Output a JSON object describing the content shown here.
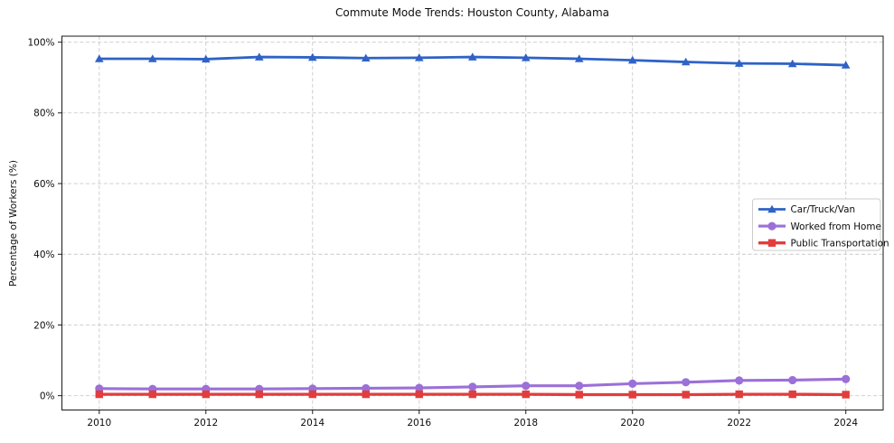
{
  "figure": {
    "title": "Commute Mode Trends: Houston County, Alabama",
    "y_axis_label": "Percentage of Workers (%)"
  },
  "chart_data": {
    "type": "line",
    "title": "Commute Mode Trends: Houston County, Alabama",
    "xlabel": "",
    "ylabel": "Percentage of Workers (%)",
    "x": [
      2010,
      2011,
      2012,
      2013,
      2014,
      2015,
      2016,
      2017,
      2018,
      2019,
      2020,
      2021,
      2022,
      2023,
      2024
    ],
    "series": [
      {
        "name": "Car/Truck/Van",
        "color": "#2e62c6",
        "marker": "triangle",
        "marker_size": 4.8,
        "line_width": 2.8,
        "values": [
          95.3,
          95.3,
          95.2,
          95.8,
          95.7,
          95.5,
          95.6,
          95.8,
          95.6,
          95.3,
          94.9,
          94.4,
          94.0,
          93.9,
          93.5
        ]
      },
      {
        "name": "Worked from Home",
        "color": "#9b70d8",
        "marker": "circle",
        "marker_size": 4.6,
        "line_width": 3.1,
        "values": [
          2.0,
          1.9,
          1.9,
          1.9,
          2.0,
          2.1,
          2.2,
          2.5,
          2.8,
          2.8,
          3.4,
          3.8,
          4.3,
          4.4,
          4.7
        ]
      },
      {
        "name": "Public Transportation",
        "color": "#e23d3d",
        "marker": "square",
        "marker_size": 4.2,
        "line_width": 3.3,
        "values": [
          0.4,
          0.4,
          0.4,
          0.4,
          0.4,
          0.4,
          0.4,
          0.4,
          0.4,
          0.3,
          0.3,
          0.3,
          0.4,
          0.4,
          0.3
        ]
      }
    ],
    "xticks": [
      2010,
      2012,
      2014,
      2016,
      2018,
      2020,
      2022,
      2024
    ],
    "xtick_labels": [
      "2010",
      "2012",
      "2014",
      "2016",
      "2018",
      "2020",
      "2022",
      "2024"
    ],
    "yticks": [
      0,
      20,
      40,
      60,
      80,
      100
    ],
    "ytick_labels": [
      "0%",
      "20%",
      "40%",
      "60%",
      "80%",
      "100%"
    ],
    "xlim": [
      2009.3,
      2024.7
    ],
    "ylim": [
      -4.05,
      101.7
    ],
    "grid": true,
    "grid_style": "dashed",
    "grid_color": "#c9c9c9",
    "axis_color": "#1a1a1a",
    "background": "#ffffff",
    "legend_position": "center-right"
  }
}
